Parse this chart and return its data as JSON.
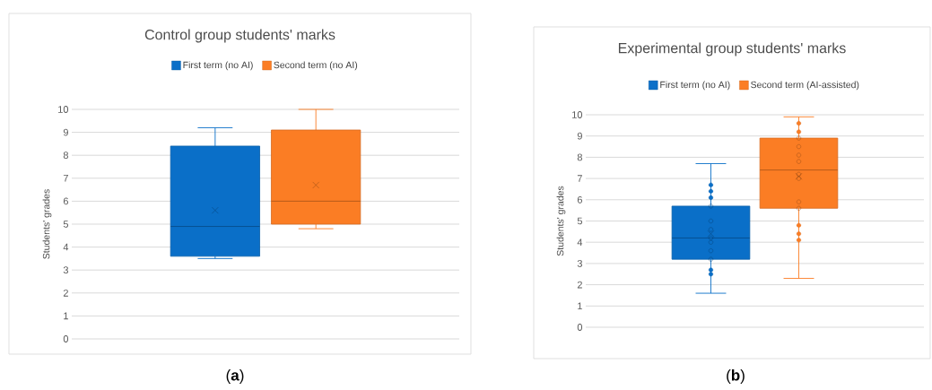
{
  "chart_data": [
    {
      "type": "box",
      "title": "Control group students' marks",
      "ylabel": "Students' grades",
      "categories": [
        null
      ],
      "legend": "top",
      "grid": "y",
      "ylim": [
        0,
        10
      ],
      "yticks": [
        0,
        1,
        2,
        3,
        4,
        5,
        6,
        7,
        8,
        9,
        10
      ],
      "annotations": [
        "(**a**)"
      ],
      "series": [
        {
          "name": "First term (no AI)",
          "color": "#0a6fc8",
          "boxes": [
            {
              "low": 3.5,
              "q1": 3.6,
              "median": 4.9,
              "q3": 8.4,
              "high": 9.2,
              "mean": 5.6
            }
          ]
        },
        {
          "name": "Second term (no AI)",
          "color": "#fb7d24",
          "boxes": [
            {
              "low": 4.8,
              "q1": 5.0,
              "median": 6.0,
              "q3": 9.1,
              "high": 10.0,
              "mean": 6.7
            }
          ]
        }
      ]
    },
    {
      "type": "box",
      "title": "Experimental group students' marks",
      "ylabel": "Students' grades",
      "categories": [
        null
      ],
      "legend": "top",
      "grid": "y",
      "ylim": [
        0,
        10
      ],
      "yticks": [
        0,
        1,
        2,
        3,
        4,
        5,
        6,
        7,
        8,
        9,
        10
      ],
      "annotations": [
        "(**b**)"
      ],
      "series": [
        {
          "name": "First term (no AI)",
          "color": "#0a6fc8",
          "boxes": [
            {
              "low": 1.6,
              "q1": 3.2,
              "median": 4.2,
              "q3": 5.7,
              "high": 7.7,
              "mean": 4.4,
              "outliers": [
                6.7,
                6.4,
                6.1,
                5.7,
                5.0,
                4.6,
                4.2,
                4.0,
                3.6,
                3.2,
                2.7,
                2.5
              ]
            }
          ]
        },
        {
          "name": "Second term (AI-assisted)",
          "color": "#fb7d24",
          "boxes": [
            {
              "low": 2.3,
              "q1": 5.6,
              "median": 7.4,
              "q3": 8.9,
              "high": 9.9,
              "mean": 7.1,
              "outliers": [
                9.6,
                9.2,
                8.9,
                8.5,
                8.1,
                7.8,
                7.2,
                7.0,
                5.9,
                5.6,
                4.8,
                4.4,
                4.1
              ]
            }
          ]
        }
      ]
    }
  ]
}
